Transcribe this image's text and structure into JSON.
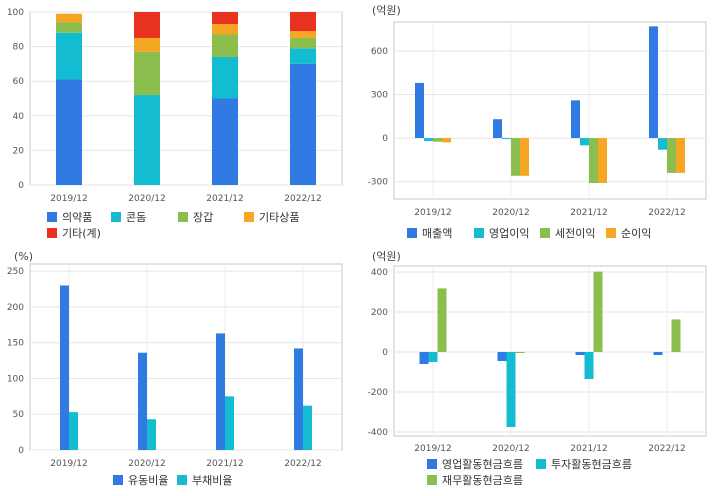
{
  "chart_data": [
    {
      "type": "bar",
      "stacked": true,
      "categories": [
        "2019/12",
        "2020/12",
        "2021/12",
        "2022/12"
      ],
      "series": [
        {
          "name": "의약품",
          "color": "#2f7be3",
          "values": [
            61,
            0,
            50,
            70
          ]
        },
        {
          "name": "콘돔",
          "color": "#14bcd1",
          "values": [
            27,
            52,
            24,
            9
          ]
        },
        {
          "name": "장갑",
          "color": "#8bbe4d",
          "values": [
            6,
            25,
            13,
            6
          ]
        },
        {
          "name": "기타상품",
          "color": "#f5a623",
          "values": [
            5,
            8,
            6,
            4
          ]
        },
        {
          "name": "기타(계)",
          "color": "#e8311e",
          "values": [
            0,
            15,
            7,
            11
          ]
        }
      ],
      "ylim": [
        0,
        100
      ],
      "yticks": [
        "0",
        "20",
        "40",
        "60",
        "80",
        "100"
      ],
      "ytick_values": [
        0,
        20,
        40,
        60,
        80,
        100
      ],
      "unit": "",
      "grid": true,
      "legend": "bottom-left"
    },
    {
      "type": "bar",
      "categories": [
        "2019/12",
        "2020/12",
        "2021/12",
        "2022/12"
      ],
      "series": [
        {
          "name": "매출액",
          "color": "#2f7be3",
          "values": [
            380,
            130,
            260,
            770
          ]
        },
        {
          "name": "영업이익",
          "color": "#14bcd1",
          "values": [
            -20,
            -5,
            -50,
            -80
          ]
        },
        {
          "name": "세전이익",
          "color": "#8bbe4d",
          "values": [
            -25,
            -260,
            -310,
            -240
          ]
        },
        {
          "name": "순이익",
          "color": "#f5a623",
          "values": [
            -30,
            -260,
            -310,
            -240
          ]
        }
      ],
      "ylim": [
        -420,
        800
      ],
      "yticks": [
        "-300",
        "0",
        "300",
        "600"
      ],
      "ytick_values": [
        -300,
        0,
        300,
        600
      ],
      "unit": "(억원)",
      "grid": true,
      "legend": "bottom-left"
    },
    {
      "type": "bar",
      "categories": [
        "2019/12",
        "2020/12",
        "2021/12",
        "2022/12"
      ],
      "series": [
        {
          "name": "유동비율",
          "color": "#2f7be3",
          "values": [
            230,
            136,
            163,
            142
          ]
        },
        {
          "name": "부채비율",
          "color": "#14bcd1",
          "values": [
            53,
            43,
            75,
            62
          ]
        }
      ],
      "ylim": [
        0,
        260
      ],
      "yticks": [
        "0",
        "50",
        "100",
        "150",
        "200",
        "250"
      ],
      "ytick_values": [
        0,
        50,
        100,
        150,
        200,
        250
      ],
      "unit": "(%)",
      "grid": true,
      "legend": "bottom-center"
    },
    {
      "type": "bar",
      "categories": [
        "2019/12",
        "2020/12",
        "2021/12",
        "2022/12"
      ],
      "series": [
        {
          "name": "영업활동현금흐름",
          "color": "#2f7be3",
          "values": [
            -60,
            -45,
            -15,
            -15
          ]
        },
        {
          "name": "투자활동현금흐름",
          "color": "#14bcd1",
          "values": [
            -50,
            -375,
            -135,
            0
          ]
        },
        {
          "name": "재무활동현금흐름",
          "color": "#8bbe4d",
          "values": [
            318,
            -5,
            402,
            163
          ]
        }
      ],
      "ylim": [
        -420,
        430
      ],
      "yticks": [
        "-400",
        "-200",
        "0",
        "200",
        "400"
      ],
      "ytick_values": [
        -400,
        -200,
        0,
        200,
        400
      ],
      "unit": "(억원)",
      "grid": true,
      "legend": "bottom-left"
    }
  ]
}
